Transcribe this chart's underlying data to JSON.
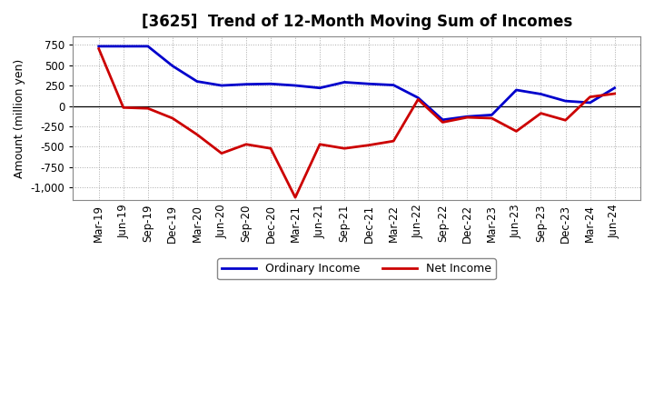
{
  "title": "[3625]  Trend of 12-Month Moving Sum of Incomes",
  "ylabel": "Amount (million yen)",
  "xlabels": [
    "Mar-19",
    "Jun-19",
    "Sep-19",
    "Dec-19",
    "Mar-20",
    "Jun-20",
    "Sep-20",
    "Dec-20",
    "Mar-21",
    "Jun-21",
    "Sep-21",
    "Dec-21",
    "Mar-22",
    "Jun-22",
    "Sep-22",
    "Dec-22",
    "Mar-23",
    "Jun-23",
    "Sep-23",
    "Dec-23",
    "Mar-24",
    "Jun-24"
  ],
  "ordinary_income": [
    730,
    730,
    730,
    490,
    300,
    250,
    265,
    270,
    250,
    220,
    290,
    270,
    255,
    100,
    -170,
    -130,
    -110,
    195,
    145,
    60,
    40,
    220
  ],
  "net_income": [
    700,
    -20,
    -30,
    -150,
    -350,
    -580,
    -470,
    -520,
    -1120,
    -470,
    -520,
    -480,
    -430,
    80,
    -200,
    -140,
    -150,
    -310,
    -90,
    -175,
    110,
    150
  ],
  "ordinary_color": "#0000cc",
  "net_color": "#cc0000",
  "ylim": [
    -1150,
    850
  ],
  "yticks": [
    -1000,
    -750,
    -500,
    -250,
    0,
    250,
    500,
    750
  ],
  "background_color": "#f0f0f0",
  "grid_color": "#aaaaaa",
  "plot_bg_color": "#f5f5f5",
  "title_fontsize": 12,
  "label_fontsize": 9,
  "tick_fontsize": 8.5,
  "linewidth": 2.0
}
